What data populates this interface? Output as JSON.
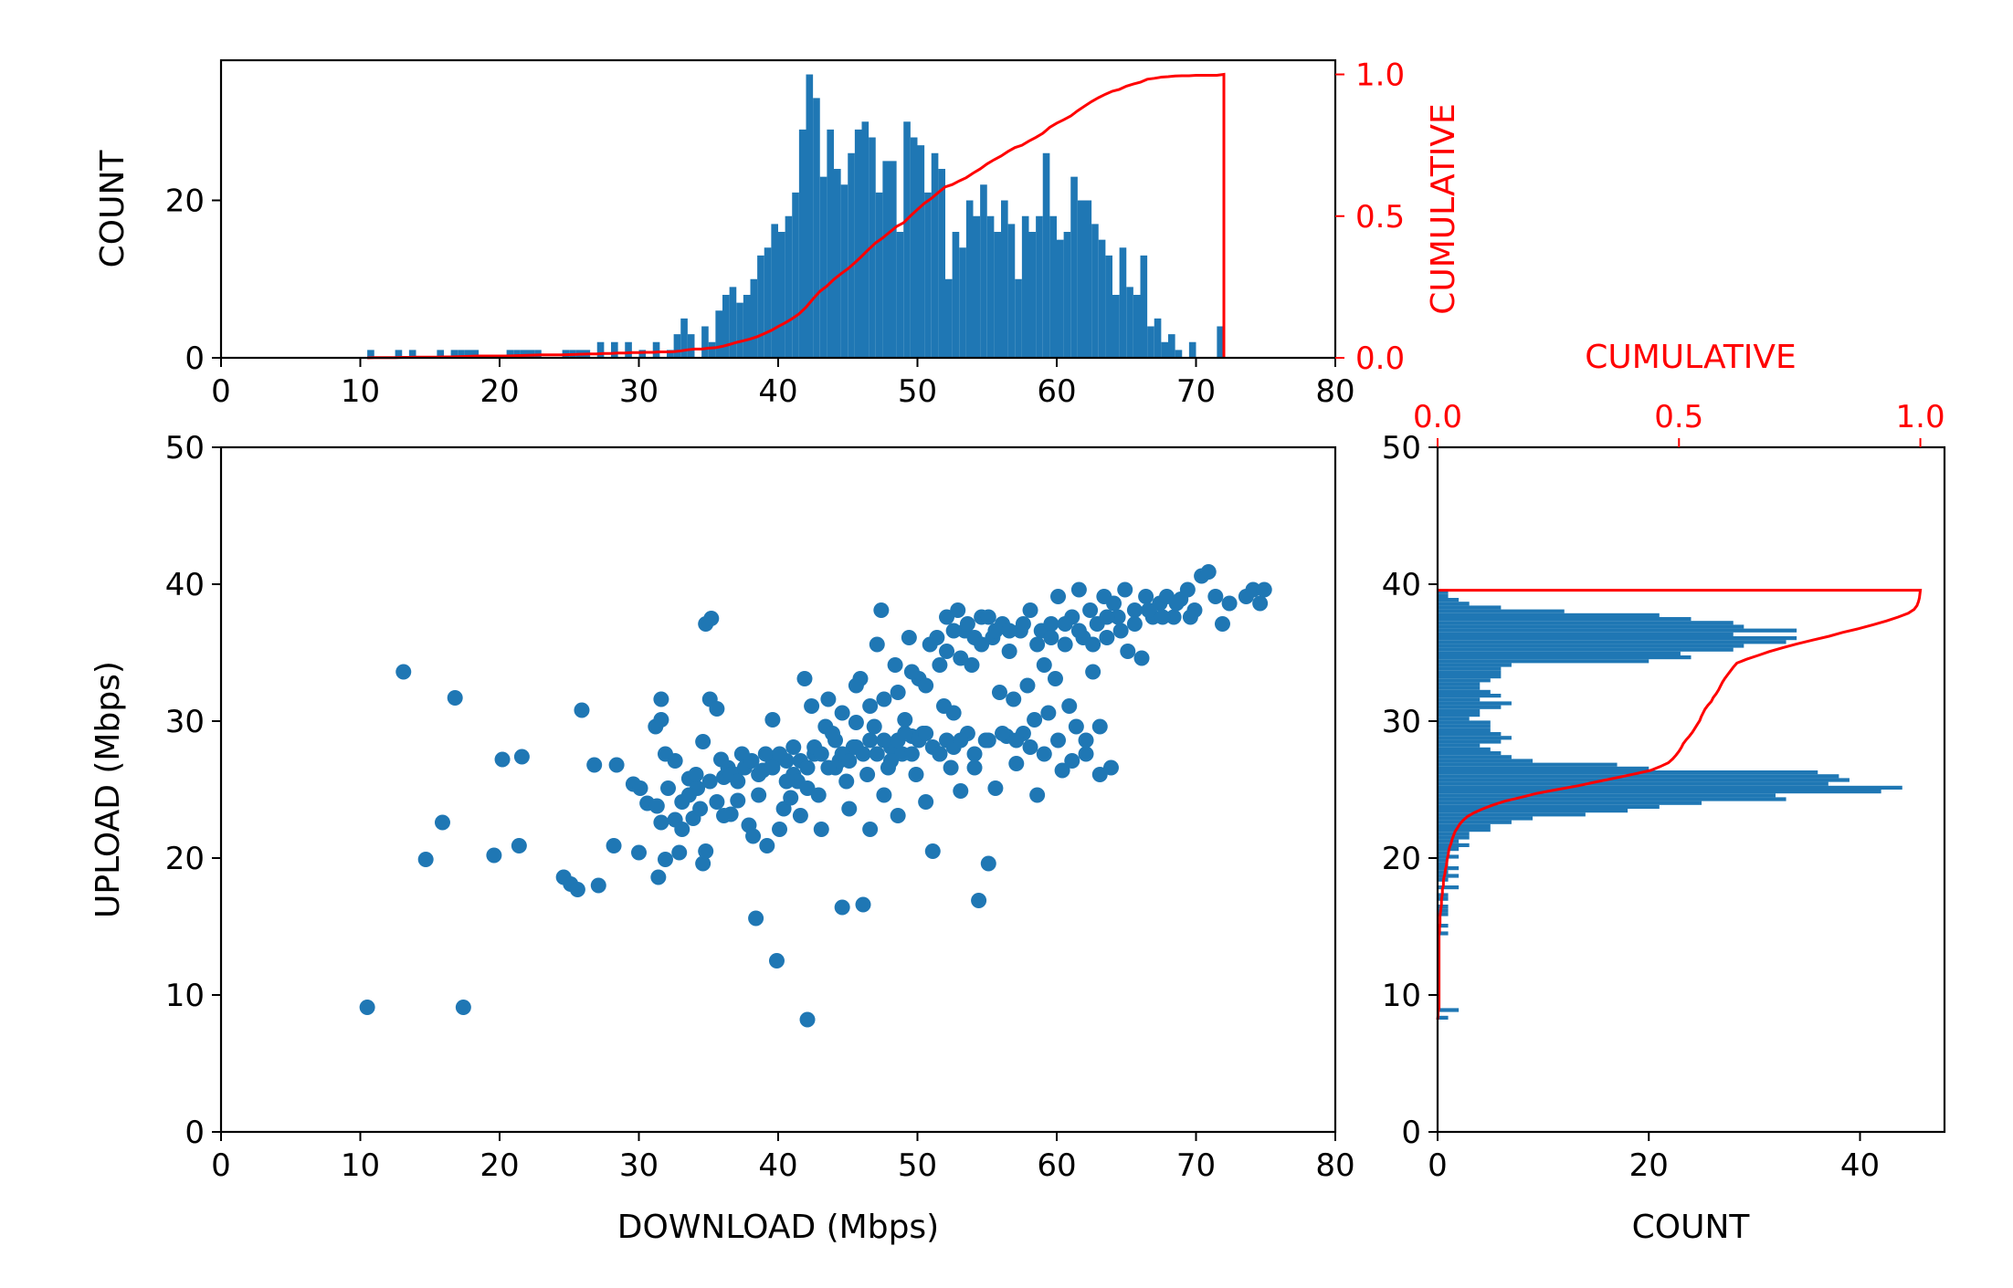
{
  "chart_data": [
    {
      "type": "bar",
      "panel": "top-histogram",
      "xlabel": "",
      "ylabel": "COUNT",
      "y2label": "CUMULATIVE",
      "xlim": [
        0,
        80
      ],
      "ylim": [
        0,
        37.8
      ],
      "y2lim": [
        0,
        1.05
      ],
      "xticks": [
        "0",
        "10",
        "20",
        "30",
        "40",
        "50",
        "60",
        "70",
        "80"
      ],
      "yticks": [
        "0",
        "20"
      ],
      "y2ticks": [
        "0.0",
        "0.5",
        "1.0"
      ],
      "bin_start": 10.5,
      "bin_width": 0.5,
      "counts": [
        1,
        0,
        0,
        0,
        1,
        0,
        1,
        0,
        0,
        0,
        1,
        0,
        1,
        1,
        1,
        1,
        0,
        0,
        0,
        0,
        1,
        1,
        1,
        1,
        1,
        0,
        0,
        0,
        1,
        1,
        1,
        1,
        0,
        2,
        0,
        2,
        0,
        2,
        0,
        1,
        0,
        2,
        0,
        1,
        3,
        5,
        3,
        0,
        4,
        2,
        6,
        8,
        9,
        7,
        8,
        10,
        13,
        14,
        17,
        16,
        18,
        21,
        29,
        36,
        33,
        23,
        29,
        24,
        22,
        26,
        29,
        30,
        28,
        21,
        25,
        25,
        16,
        30,
        28,
        27,
        21,
        26,
        24,
        10,
        16,
        14,
        20,
        18,
        22,
        18,
        16,
        20,
        17,
        10,
        18,
        16,
        18,
        26,
        18,
        15,
        16,
        23,
        20,
        20,
        17,
        15,
        13,
        8,
        14,
        9,
        8,
        13,
        4,
        5,
        2,
        3,
        1,
        0,
        2,
        0,
        0,
        0,
        4
      ]
    },
    {
      "type": "scatter",
      "panel": "main-scatter",
      "xlabel": "DOWNLOAD (Mbps)",
      "ylabel": "UPLOAD (Mbps)",
      "xlim": [
        0,
        80
      ],
      "ylim": [
        0,
        50
      ],
      "xticks": [
        "0",
        "10",
        "20",
        "30",
        "40",
        "50",
        "60",
        "70",
        "80"
      ],
      "yticks": [
        "0",
        "10",
        "20",
        "30",
        "40",
        "50"
      ],
      "color": "#1f77b4",
      "points": [
        [
          10.5,
          9.1
        ],
        [
          17.4,
          9.1
        ],
        [
          13.1,
          33.6
        ],
        [
          16.8,
          31.7
        ],
        [
          15.9,
          22.6
        ],
        [
          14.7,
          19.9
        ],
        [
          19.6,
          20.2
        ],
        [
          20.2,
          27.2
        ],
        [
          21.4,
          20.9
        ],
        [
          21.6,
          27.4
        ],
        [
          24.6,
          18.6
        ],
        [
          25.1,
          18.1
        ],
        [
          25.6,
          17.7
        ],
        [
          26.8,
          26.8
        ],
        [
          27.1,
          18.0
        ],
        [
          28.2,
          20.9
        ],
        [
          25.9,
          30.8
        ],
        [
          28.4,
          26.8
        ],
        [
          29.6,
          25.4
        ],
        [
          30.1,
          25.1
        ],
        [
          30.0,
          20.4
        ],
        [
          30.6,
          24.0
        ],
        [
          31.3,
          23.8
        ],
        [
          31.4,
          18.6
        ],
        [
          31.2,
          29.6
        ],
        [
          31.6,
          30.1
        ],
        [
          31.6,
          31.6
        ],
        [
          31.9,
          27.6
        ],
        [
          31.6,
          22.6
        ],
        [
          32.1,
          25.1
        ],
        [
          32.6,
          22.8
        ],
        [
          32.9,
          20.4
        ],
        [
          33.1,
          24.1
        ],
        [
          33.6,
          25.8
        ],
        [
          33.9,
          22.9
        ],
        [
          34.2,
          25.1
        ],
        [
          34.4,
          23.6
        ],
        [
          34.6,
          19.6
        ],
        [
          34.8,
          20.5
        ],
        [
          34.6,
          28.5
        ],
        [
          35.1,
          31.6
        ],
        [
          34.8,
          37.1
        ],
        [
          35.2,
          37.5
        ],
        [
          35.6,
          30.9
        ],
        [
          35.9,
          27.2
        ],
        [
          36.1,
          25.9
        ],
        [
          36.4,
          26.6
        ],
        [
          36.6,
          23.2
        ],
        [
          36.9,
          26.1
        ],
        [
          37.1,
          24.2
        ],
        [
          37.4,
          27.6
        ],
        [
          37.9,
          22.4
        ],
        [
          38.2,
          21.6
        ],
        [
          38.4,
          15.6
        ],
        [
          38.6,
          24.6
        ],
        [
          38.9,
          26.4
        ],
        [
          39.2,
          20.9
        ],
        [
          39.6,
          26.9
        ],
        [
          39.9,
          12.5
        ],
        [
          39.6,
          30.1
        ],
        [
          40.1,
          22.1
        ],
        [
          40.4,
          23.6
        ],
        [
          40.6,
          27.1
        ],
        [
          40.9,
          24.4
        ],
        [
          41.1,
          26.1
        ],
        [
          41.4,
          25.6
        ],
        [
          41.6,
          23.1
        ],
        [
          41.9,
          33.1
        ],
        [
          42.1,
          8.2
        ],
        [
          42.1,
          25.1
        ],
        [
          42.4,
          31.1
        ],
        [
          42.6,
          27.6
        ],
        [
          42.9,
          24.6
        ],
        [
          43.1,
          22.1
        ],
        [
          43.4,
          29.6
        ],
        [
          43.9,
          29.1
        ],
        [
          44.1,
          26.6
        ],
        [
          44.4,
          27.1
        ],
        [
          44.6,
          16.4
        ],
        [
          44.9,
          25.6
        ],
        [
          45.1,
          23.6
        ],
        [
          45.4,
          28.1
        ],
        [
          45.6,
          29.9
        ],
        [
          45.9,
          33.1
        ],
        [
          46.1,
          16.6
        ],
        [
          46.4,
          26.1
        ],
        [
          46.6,
          22.1
        ],
        [
          46.9,
          29.6
        ],
        [
          47.1,
          35.6
        ],
        [
          47.4,
          38.1
        ],
        [
          47.6,
          24.6
        ],
        [
          47.9,
          26.6
        ],
        [
          48.1,
          28.1
        ],
        [
          48.4,
          34.1
        ],
        [
          48.6,
          23.1
        ],
        [
          48.9,
          27.6
        ],
        [
          49.1,
          30.1
        ],
        [
          49.4,
          36.1
        ],
        [
          49.6,
          28.9
        ],
        [
          49.9,
          26.1
        ],
        [
          50.1,
          33.1
        ],
        [
          50.4,
          29.1
        ],
        [
          50.6,
          24.1
        ],
        [
          50.9,
          35.6
        ],
        [
          51.1,
          20.5
        ],
        [
          51.4,
          36.1
        ],
        [
          51.6,
          27.6
        ],
        [
          51.9,
          31.1
        ],
        [
          52.1,
          37.6
        ],
        [
          52.4,
          26.6
        ],
        [
          52.6,
          30.6
        ],
        [
          52.9,
          38.1
        ],
        [
          53.1,
          24.9
        ],
        [
          53.4,
          36.6
        ],
        [
          53.6,
          29.1
        ],
        [
          53.9,
          34.1
        ],
        [
          54.1,
          26.6
        ],
        [
          54.4,
          16.9
        ],
        [
          54.6,
          37.6
        ],
        [
          54.9,
          28.6
        ],
        [
          55.1,
          19.6
        ],
        [
          55.4,
          36.1
        ],
        [
          55.6,
          25.1
        ],
        [
          55.9,
          32.1
        ],
        [
          56.1,
          37.1
        ],
        [
          56.4,
          28.9
        ],
        [
          56.6,
          35.1
        ],
        [
          56.9,
          31.6
        ],
        [
          57.1,
          26.9
        ],
        [
          57.4,
          36.6
        ],
        [
          57.6,
          29.1
        ],
        [
          57.9,
          32.6
        ],
        [
          58.1,
          38.1
        ],
        [
          58.4,
          30.1
        ],
        [
          58.6,
          24.6
        ],
        [
          58.9,
          36.6
        ],
        [
          59.1,
          34.1
        ],
        [
          59.4,
          30.6
        ],
        [
          59.6,
          37.1
        ],
        [
          59.9,
          33.1
        ],
        [
          60.1,
          39.1
        ],
        [
          60.4,
          26.4
        ],
        [
          60.6,
          35.6
        ],
        [
          60.9,
          31.1
        ],
        [
          61.1,
          37.6
        ],
        [
          61.4,
          29.6
        ],
        [
          61.6,
          39.6
        ],
        [
          61.9,
          36.1
        ],
        [
          62.1,
          27.6
        ],
        [
          62.4,
          38.1
        ],
        [
          62.6,
          33.6
        ],
        [
          62.9,
          37.1
        ],
        [
          63.1,
          26.1
        ],
        [
          63.4,
          39.1
        ],
        [
          63.6,
          36.1
        ],
        [
          63.9,
          26.6
        ],
        [
          64.1,
          38.6
        ],
        [
          64.4,
          37.6
        ],
        [
          64.9,
          39.6
        ],
        [
          65.1,
          35.1
        ],
        [
          65.6,
          38.1
        ],
        [
          66.1,
          34.6
        ],
        [
          66.4,
          39.1
        ],
        [
          66.9,
          37.6
        ],
        [
          67.4,
          38.6
        ],
        [
          67.9,
          39.1
        ],
        [
          68.4,
          37.6
        ],
        [
          68.9,
          38.9
        ],
        [
          69.4,
          39.6
        ],
        [
          69.9,
          38.1
        ],
        [
          70.4,
          40.6
        ],
        [
          70.9,
          40.9
        ],
        [
          71.4,
          39.1
        ],
        [
          71.9,
          37.1
        ],
        [
          72.4,
          38.6
        ],
        [
          73.6,
          39.1
        ],
        [
          74.1,
          39.6
        ],
        [
          74.6,
          38.6
        ],
        [
          74.9,
          39.6
        ],
        [
          36.6,
          26.1
        ],
        [
          37.1,
          25.6
        ],
        [
          37.6,
          26.6
        ],
        [
          38.1,
          27.1
        ],
        [
          38.6,
          26.1
        ],
        [
          39.1,
          27.6
        ],
        [
          39.6,
          26.6
        ],
        [
          40.1,
          27.6
        ],
        [
          40.6,
          25.6
        ],
        [
          41.1,
          28.1
        ],
        [
          41.6,
          27.1
        ],
        [
          42.1,
          26.6
        ],
        [
          42.6,
          28.1
        ],
        [
          43.1,
          27.6
        ],
        [
          43.6,
          26.6
        ],
        [
          44.1,
          28.6
        ],
        [
          44.6,
          27.6
        ],
        [
          45.1,
          27.1
        ],
        [
          45.6,
          28.1
        ],
        [
          46.1,
          27.6
        ],
        [
          46.6,
          28.6
        ],
        [
          47.1,
          27.6
        ],
        [
          47.6,
          28.6
        ],
        [
          48.1,
          27.1
        ],
        [
          48.6,
          28.6
        ],
        [
          49.1,
          29.1
        ],
        [
          49.6,
          27.6
        ],
        [
          50.1,
          28.6
        ],
        [
          50.6,
          29.1
        ],
        [
          51.1,
          28.1
        ],
        [
          51.6,
          27.6
        ],
        [
          52.1,
          28.6
        ],
        [
          52.6,
          28.1
        ],
        [
          53.1,
          28.6
        ],
        [
          54.1,
          27.6
        ],
        [
          55.1,
          28.6
        ],
        [
          56.1,
          29.1
        ],
        [
          57.1,
          28.6
        ],
        [
          58.1,
          28.1
        ],
        [
          59.1,
          27.6
        ],
        [
          60.1,
          28.6
        ],
        [
          61.1,
          27.1
        ],
        [
          62.1,
          28.6
        ],
        [
          63.1,
          29.6
        ],
        [
          52.1,
          35.1
        ],
        [
          52.6,
          36.6
        ],
        [
          53.1,
          34.6
        ],
        [
          53.6,
          37.1
        ],
        [
          54.1,
          36.1
        ],
        [
          54.6,
          35.6
        ],
        [
          55.1,
          37.6
        ],
        [
          55.6,
          36.6
        ],
        [
          56.6,
          36.6
        ],
        [
          57.6,
          37.1
        ],
        [
          58.6,
          35.6
        ],
        [
          59.6,
          36.1
        ],
        [
          60.6,
          37.1
        ],
        [
          61.6,
          36.6
        ],
        [
          62.6,
          35.6
        ],
        [
          63.6,
          37.6
        ],
        [
          64.6,
          36.6
        ],
        [
          65.6,
          37.1
        ],
        [
          66.6,
          38.1
        ],
        [
          67.6,
          37.6
        ],
        [
          68.6,
          38.6
        ],
        [
          69.6,
          37.6
        ],
        [
          48.6,
          32.1
        ],
        [
          49.6,
          33.6
        ],
        [
          50.6,
          32.6
        ],
        [
          51.6,
          34.1
        ],
        [
          47.6,
          31.6
        ],
        [
          46.6,
          31.1
        ],
        [
          45.6,
          32.6
        ],
        [
          44.6,
          30.6
        ],
        [
          43.6,
          31.6
        ],
        [
          33.6,
          24.6
        ],
        [
          34.1,
          26.1
        ],
        [
          35.1,
          25.6
        ],
        [
          35.6,
          24.1
        ],
        [
          36.1,
          23.1
        ],
        [
          33.1,
          22.1
        ],
        [
          32.6,
          27.1
        ],
        [
          31.9,
          19.9
        ]
      ]
    },
    {
      "type": "bar",
      "orientation": "horizontal",
      "panel": "right-histogram",
      "xlabel": "COUNT",
      "x2label": "CUMULATIVE",
      "ylim": [
        0,
        50
      ],
      "xlim": [
        0,
        48
      ],
      "x2lim": [
        0,
        1.05
      ],
      "xticks": [
        "0",
        "20",
        "40"
      ],
      "x2ticks": [
        "0.0",
        "0.5",
        "1.0"
      ],
      "yticks": [
        "0",
        "10",
        "20",
        "30",
        "40",
        "50"
      ],
      "bin_start": 8.2,
      "bin_width": 0.28,
      "counts": [
        1,
        0,
        2,
        0,
        0,
        0,
        0,
        0,
        0,
        0,
        0,
        0,
        0,
        0,
        0,
        0,
        0,
        0,
        0,
        0,
        0,
        0,
        1,
        0,
        1,
        0,
        0,
        1,
        1,
        1,
        0,
        1,
        1,
        0,
        2,
        0,
        1,
        2,
        1,
        2,
        1,
        1,
        2,
        1,
        2,
        3,
        2,
        3,
        3,
        5,
        5,
        7,
        9,
        14,
        18,
        21,
        25,
        33,
        32,
        42,
        44,
        37,
        39,
        38,
        36,
        20,
        17,
        9,
        7,
        6,
        5,
        4,
        6,
        7,
        6,
        5,
        5,
        5,
        3,
        4,
        4,
        6,
        7,
        4,
        6,
        5,
        4,
        4,
        5,
        6,
        6,
        6,
        7,
        20,
        24,
        23,
        28,
        29,
        33,
        34,
        28,
        34,
        29,
        28,
        24,
        21,
        12,
        6,
        3,
        2,
        1,
        1
      ]
    }
  ]
}
